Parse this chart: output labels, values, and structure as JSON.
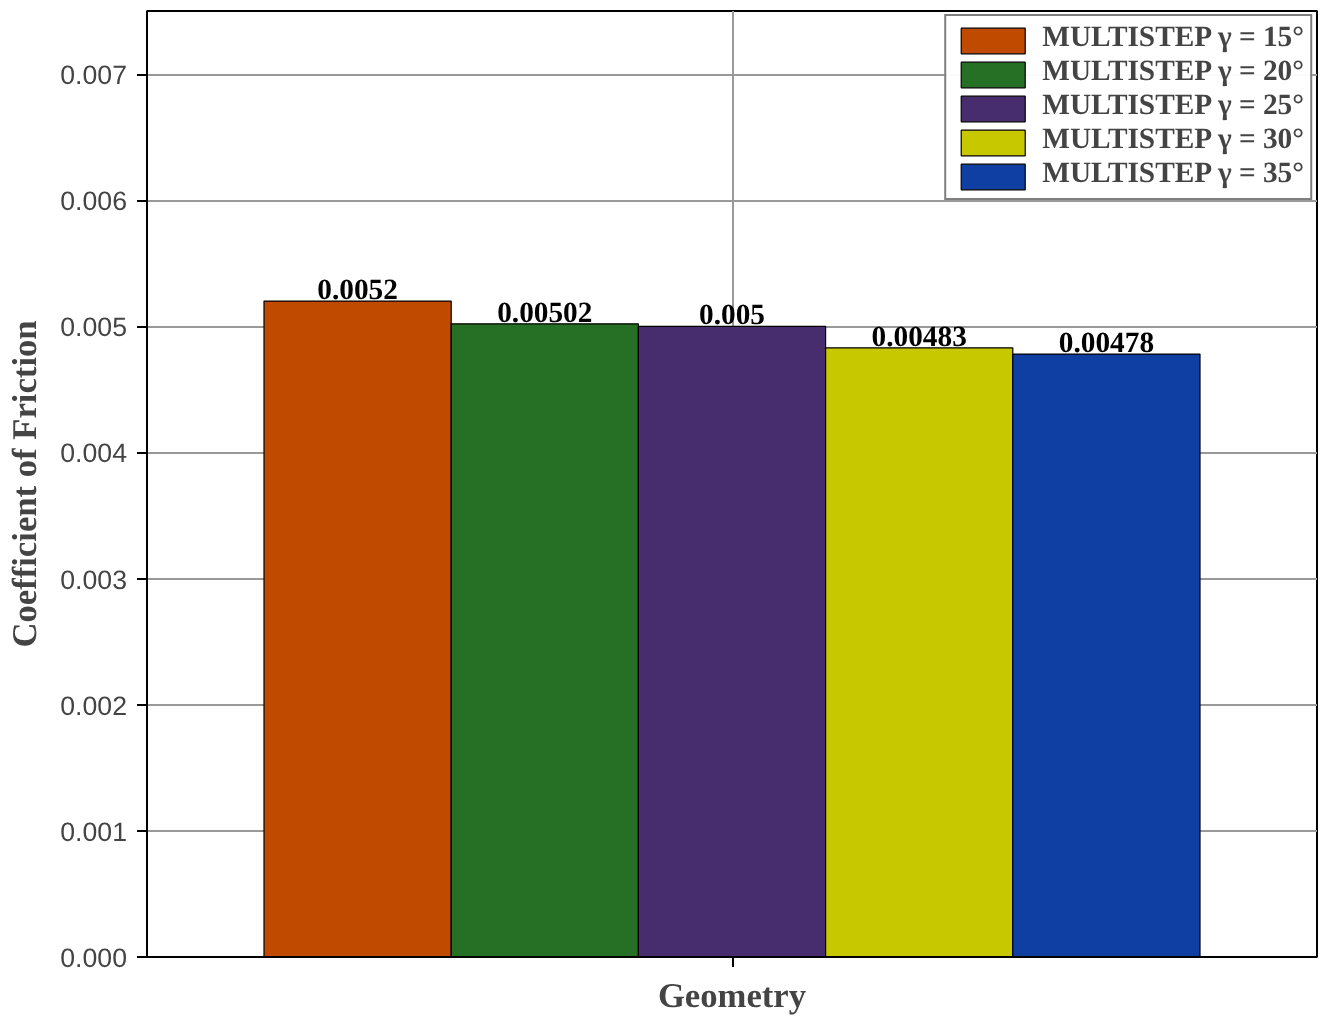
{
  "chart_data": {
    "type": "bar",
    "xlabel": "Geometry",
    "ylabel": "Coefficient of Friction",
    "categories": [
      null
    ],
    "series": [
      {
        "name": "MULTISTEP γ = 15°",
        "color": "#c04a00",
        "values": [
          0.0052
        ]
      },
      {
        "name": "MULTISTEP γ = 20°",
        "color": "#267026",
        "values": [
          0.00502
        ]
      },
      {
        "name": "MULTISTEP γ = 25°",
        "color": "#472d6e",
        "values": [
          0.005
        ]
      },
      {
        "name": "MULTISTEP γ = 30°",
        "color": "#c8c800",
        "values": [
          0.00483
        ]
      },
      {
        "name": "MULTISTEP γ = 35°",
        "color": "#0f3fa3",
        "values": [
          0.00478
        ]
      }
    ],
    "ylim": [
      0,
      0.0075
    ],
    "yticks": [
      {
        "value": 0,
        "label": "0.000"
      },
      {
        "value": 0.001,
        "label": "0.001"
      },
      {
        "value": 0.002,
        "label": "0.002"
      },
      {
        "value": 0.003,
        "label": "0.003"
      },
      {
        "value": 0.004,
        "label": "0.004"
      },
      {
        "value": 0.005,
        "label": "0.005"
      },
      {
        "value": 0.006,
        "label": "0.006"
      },
      {
        "value": 0.007,
        "label": "0.007"
      }
    ],
    "grid": true,
    "legend": "top right",
    "data_labels": true
  }
}
